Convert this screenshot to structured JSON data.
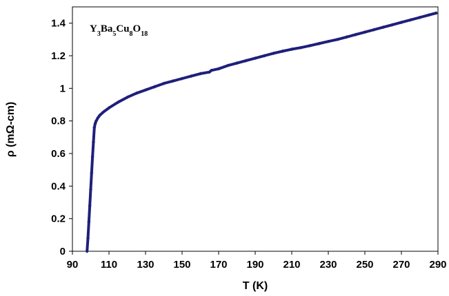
{
  "chart_data": {
    "type": "scatter",
    "annotation": {
      "parts": [
        {
          "text": "Y",
          "sub": false
        },
        {
          "text": "3",
          "sub": true
        },
        {
          "text": "Ba",
          "sub": false
        },
        {
          "text": "5",
          "sub": true
        },
        {
          "text": "Cu",
          "sub": false
        },
        {
          "text": "8",
          "sub": true
        },
        {
          "text": "O",
          "sub": false
        },
        {
          "text": "18",
          "sub": true
        }
      ]
    },
    "xlabel": "T (K)",
    "ylabel": "ρ (mΩ-cm)",
    "xlim": [
      90,
      290
    ],
    "ylim": [
      0,
      1.5
    ],
    "x_ticks": [
      90,
      110,
      130,
      150,
      170,
      190,
      210,
      230,
      250,
      270,
      290
    ],
    "y_ticks": [
      0,
      0.2,
      0.4,
      0.6,
      0.8,
      1,
      1.2,
      1.4
    ],
    "y_tick_labels": [
      "0",
      "0.2",
      "0.4",
      "0.6",
      "0.8",
      "1",
      "1.2",
      "1.4"
    ],
    "grid": false,
    "legend": "none",
    "series": [
      {
        "color": "#1f1f7a",
        "marker": "diamond",
        "x": [
          98.0,
          98.5,
          99.0,
          99.5,
          100.0,
          100.5,
          101.0,
          101.5,
          102.0,
          102.5,
          103.0,
          104.0,
          105.0,
          107.0,
          110.0,
          115.0,
          120.0,
          125.0,
          130.0,
          135.0,
          140.0,
          145.0,
          150.0,
          155.0,
          160.0,
          165.0,
          166.0,
          170.0,
          175.0,
          180.0,
          185.0,
          190.0,
          195.0,
          200.0,
          205.0,
          210.0,
          215.0,
          220.0,
          225.0,
          230.0,
          235.0,
          240.0,
          245.0,
          250.0,
          255.0,
          260.0,
          265.0,
          270.0,
          275.0,
          280.0,
          285.0,
          289.0
        ],
        "y": [
          0.0,
          0.08,
          0.18,
          0.28,
          0.38,
          0.48,
          0.58,
          0.67,
          0.76,
          0.785,
          0.8,
          0.82,
          0.835,
          0.855,
          0.88,
          0.915,
          0.945,
          0.97,
          0.99,
          1.01,
          1.03,
          1.045,
          1.06,
          1.075,
          1.09,
          1.1,
          1.11,
          1.12,
          1.14,
          1.155,
          1.17,
          1.185,
          1.2,
          1.215,
          1.228,
          1.24,
          1.25,
          1.262,
          1.275,
          1.288,
          1.3,
          1.315,
          1.33,
          1.345,
          1.36,
          1.375,
          1.39,
          1.405,
          1.42,
          1.435,
          1.45,
          1.462
        ]
      }
    ]
  }
}
